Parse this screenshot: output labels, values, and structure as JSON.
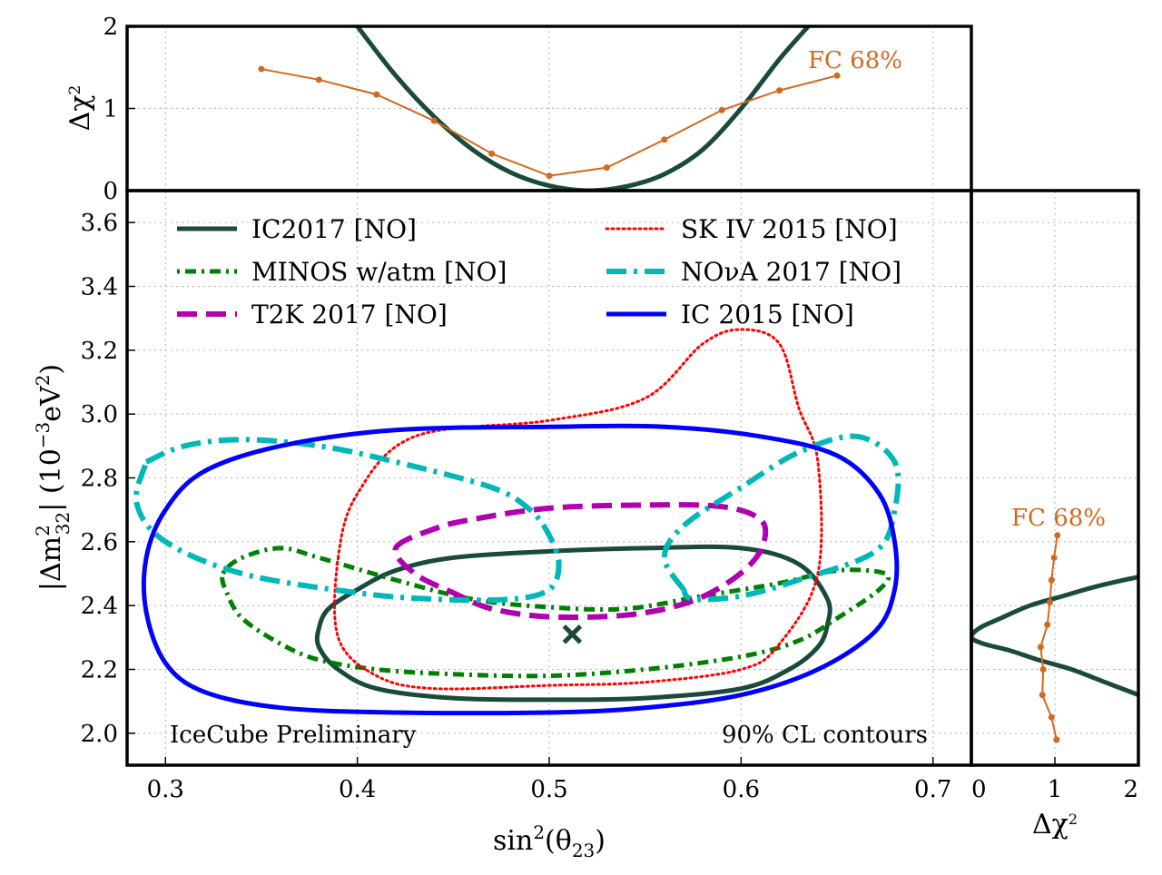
{
  "chart_data": {
    "type": "line",
    "annotations": {
      "preliminary": "IceCube Preliminary",
      "cl_label": "90% CL contours"
    },
    "main": {
      "xlabel_html": "sin²(θ₂₃)",
      "ylabel_html": "|Δm²₃₂| (10⁻³eV²)",
      "xlim": [
        0.28,
        0.72
      ],
      "ylim": [
        1.9,
        3.7
      ],
      "xticks": [
        "0.3",
        "0.4",
        "0.5",
        "0.6",
        "0.7"
      ],
      "xtick_values": [
        0.3,
        0.4,
        0.5,
        0.6,
        0.7
      ],
      "yticks": [
        "2.0",
        "2.2",
        "2.4",
        "2.6",
        "2.8",
        "3.0",
        "3.2",
        "3.4",
        "3.6"
      ],
      "ytick_values": [
        2.0,
        2.2,
        2.4,
        2.6,
        2.8,
        3.0,
        3.2,
        3.4,
        3.6
      ],
      "grid": true,
      "best_fit": {
        "x": 0.512,
        "y": 2.31,
        "color": "#1a4a3a"
      },
      "legend_placement": "top",
      "series": [
        {
          "name": "IC2017 [NO]",
          "color": "#1a4a3a",
          "style": "solid",
          "closed": true,
          "points": [
            [
              0.38,
              2.33
            ],
            [
              0.385,
              2.39
            ],
            [
              0.4,
              2.45
            ],
            [
              0.42,
              2.51
            ],
            [
              0.45,
              2.55
            ],
            [
              0.5,
              2.57
            ],
            [
              0.55,
              2.58
            ],
            [
              0.6,
              2.58
            ],
            [
              0.63,
              2.53
            ],
            [
              0.645,
              2.42
            ],
            [
              0.645,
              2.34
            ],
            [
              0.64,
              2.27
            ],
            [
              0.625,
              2.2
            ],
            [
              0.6,
              2.14
            ],
            [
              0.55,
              2.11
            ],
            [
              0.5,
              2.105
            ],
            [
              0.45,
              2.11
            ],
            [
              0.41,
              2.14
            ],
            [
              0.39,
              2.2
            ],
            [
              0.38,
              2.27
            ]
          ]
        },
        {
          "name": "MINOS w/atm [NO]",
          "color": "#008000",
          "style": "dotdash",
          "closed": true,
          "points": [
            [
              0.33,
              2.5
            ],
            [
              0.34,
              2.55
            ],
            [
              0.36,
              2.58
            ],
            [
              0.38,
              2.55
            ],
            [
              0.42,
              2.48
            ],
            [
              0.46,
              2.42
            ],
            [
              0.5,
              2.395
            ],
            [
              0.54,
              2.39
            ],
            [
              0.58,
              2.43
            ],
            [
              0.62,
              2.47
            ],
            [
              0.65,
              2.51
            ],
            [
              0.675,
              2.5
            ],
            [
              0.672,
              2.45
            ],
            [
              0.65,
              2.36
            ],
            [
              0.63,
              2.29
            ],
            [
              0.6,
              2.24
            ],
            [
              0.55,
              2.2
            ],
            [
              0.5,
              2.18
            ],
            [
              0.45,
              2.185
            ],
            [
              0.41,
              2.2
            ],
            [
              0.38,
              2.23
            ],
            [
              0.36,
              2.28
            ],
            [
              0.34,
              2.36
            ],
            [
              0.332,
              2.44
            ]
          ]
        },
        {
          "name": "T2K 2017 [NO]",
          "color": "#b000b0",
          "style": "dashed",
          "closed": true,
          "points": [
            [
              0.42,
              2.58
            ],
            [
              0.44,
              2.64
            ],
            [
              0.46,
              2.67
            ],
            [
              0.5,
              2.705
            ],
            [
              0.55,
              2.715
            ],
            [
              0.59,
              2.71
            ],
            [
              0.61,
              2.67
            ],
            [
              0.612,
              2.6
            ],
            [
              0.605,
              2.53
            ],
            [
              0.59,
              2.46
            ],
            [
              0.57,
              2.405
            ],
            [
              0.54,
              2.37
            ],
            [
              0.5,
              2.365
            ],
            [
              0.47,
              2.39
            ],
            [
              0.45,
              2.44
            ],
            [
              0.43,
              2.5
            ]
          ]
        },
        {
          "name": "SK IV 2015 [NO]",
          "color": "#ff0000",
          "style": "dotted",
          "closed": true,
          "points": [
            [
              0.39,
              2.55
            ],
            [
              0.4,
              2.75
            ],
            [
              0.43,
              2.93
            ],
            [
              0.5,
              2.98
            ],
            [
              0.55,
              3.05
            ],
            [
              0.58,
              3.22
            ],
            [
              0.6,
              3.265
            ],
            [
              0.62,
              3.22
            ],
            [
              0.63,
              3.02
            ],
            [
              0.64,
              2.85
            ],
            [
              0.64,
              2.5
            ],
            [
              0.62,
              2.28
            ],
            [
              0.6,
              2.2
            ],
            [
              0.55,
              2.16
            ],
            [
              0.5,
              2.15
            ],
            [
              0.44,
              2.14
            ],
            [
              0.41,
              2.18
            ],
            [
              0.39,
              2.3
            ]
          ]
        },
        {
          "name": "NOνA 2017 [NO]",
          "color": "#00b8b8",
          "style": "dashdot",
          "closed": false,
          "points": [
            [
              0.29,
              2.85
            ],
            [
              0.31,
              2.9
            ],
            [
              0.34,
              2.92
            ],
            [
              0.38,
              2.9
            ],
            [
              0.42,
              2.85
            ],
            [
              0.47,
              2.77
            ],
            [
              0.49,
              2.7
            ],
            [
              0.5,
              2.62
            ],
            [
              0.505,
              2.53
            ],
            [
              0.5,
              2.45
            ],
            [
              0.48,
              2.42
            ],
            [
              0.44,
              2.42
            ],
            [
              0.4,
              2.44
            ],
            [
              0.34,
              2.5
            ],
            [
              0.3,
              2.6
            ],
            [
              0.285,
              2.72
            ],
            [
              0.29,
              2.85
            ]
          ],
          "points2": [
            [
              0.57,
              2.45
            ],
            [
              0.56,
              2.55
            ],
            [
              0.57,
              2.65
            ],
            [
              0.6,
              2.77
            ],
            [
              0.63,
              2.88
            ],
            [
              0.66,
              2.93
            ],
            [
              0.68,
              2.85
            ],
            [
              0.68,
              2.7
            ],
            [
              0.67,
              2.57
            ],
            [
              0.63,
              2.48
            ],
            [
              0.6,
              2.43
            ],
            [
              0.575,
              2.42
            ],
            [
              0.57,
              2.45
            ]
          ]
        },
        {
          "name": "IC 2015 [NO]",
          "color": "#0000ff",
          "style": "solid",
          "closed": true,
          "points": [
            [
              0.3,
              2.7
            ],
            [
              0.32,
              2.82
            ],
            [
              0.36,
              2.9
            ],
            [
              0.42,
              2.95
            ],
            [
              0.5,
              2.96
            ],
            [
              0.56,
              2.96
            ],
            [
              0.61,
              2.93
            ],
            [
              0.65,
              2.87
            ],
            [
              0.672,
              2.75
            ],
            [
              0.68,
              2.6
            ],
            [
              0.68,
              2.45
            ],
            [
              0.67,
              2.32
            ],
            [
              0.64,
              2.2
            ],
            [
              0.6,
              2.12
            ],
            [
              0.55,
              2.08
            ],
            [
              0.5,
              2.065
            ],
            [
              0.42,
              2.065
            ],
            [
              0.36,
              2.08
            ],
            [
              0.32,
              2.13
            ],
            [
              0.3,
              2.22
            ],
            [
              0.29,
              2.38
            ],
            [
              0.29,
              2.55
            ]
          ]
        }
      ]
    },
    "top": {
      "ylabel_html": "Δχ²",
      "xlim": [
        0.28,
        0.72
      ],
      "ylim": [
        0,
        2
      ],
      "yticks": [
        "0",
        "1",
        "2"
      ],
      "ytick_values": [
        0,
        1,
        2
      ],
      "grid": true,
      "fc_label": "FC 68%",
      "fc_color": "#d2691e",
      "profile_color": "#1a4a3a",
      "profile_points": [
        [
          0.4,
          2.0
        ],
        [
          0.42,
          1.4
        ],
        [
          0.44,
          0.9
        ],
        [
          0.46,
          0.5
        ],
        [
          0.48,
          0.22
        ],
        [
          0.5,
          0.06
        ],
        [
          0.52,
          0.0
        ],
        [
          0.54,
          0.05
        ],
        [
          0.56,
          0.2
        ],
        [
          0.58,
          0.5
        ],
        [
          0.6,
          1.0
        ],
        [
          0.62,
          1.6
        ],
        [
          0.635,
          2.0
        ]
      ],
      "fc_points": [
        [
          0.35,
          1.48
        ],
        [
          0.38,
          1.35
        ],
        [
          0.41,
          1.17
        ],
        [
          0.44,
          0.85
        ],
        [
          0.47,
          0.45
        ],
        [
          0.5,
          0.18
        ],
        [
          0.53,
          0.28
        ],
        [
          0.56,
          0.62
        ],
        [
          0.59,
          0.98
        ],
        [
          0.62,
          1.22
        ],
        [
          0.65,
          1.4
        ]
      ]
    },
    "right": {
      "xlabel_html": "Δχ²",
      "xlim": [
        0,
        2
      ],
      "xticks": [
        "0",
        "1",
        "2"
      ],
      "xtick_values": [
        0,
        1,
        2
      ],
      "grid": true,
      "fc_label": "FC 68%",
      "fc_color": "#d2691e",
      "profile_color": "#1a4a3a",
      "profile_points": [
        [
          2.0,
          2.12
        ],
        [
          1.6,
          2.16
        ],
        [
          1.2,
          2.2
        ],
        [
          0.8,
          2.23
        ],
        [
          0.45,
          2.26
        ],
        [
          0.15,
          2.28
        ],
        [
          0.0,
          2.3
        ],
        [
          0.1,
          2.33
        ],
        [
          0.35,
          2.36
        ],
        [
          0.7,
          2.4
        ],
        [
          1.1,
          2.43
        ],
        [
          1.5,
          2.46
        ],
        [
          2.0,
          2.49
        ]
      ],
      "fc_points": [
        [
          1.02,
          1.98
        ],
        [
          0.96,
          2.05
        ],
        [
          0.85,
          2.12
        ],
        [
          0.86,
          2.2
        ],
        [
          0.83,
          2.27
        ],
        [
          0.91,
          2.34
        ],
        [
          0.94,
          2.41
        ],
        [
          0.96,
          2.48
        ],
        [
          0.99,
          2.55
        ],
        [
          1.03,
          2.62
        ]
      ]
    }
  }
}
